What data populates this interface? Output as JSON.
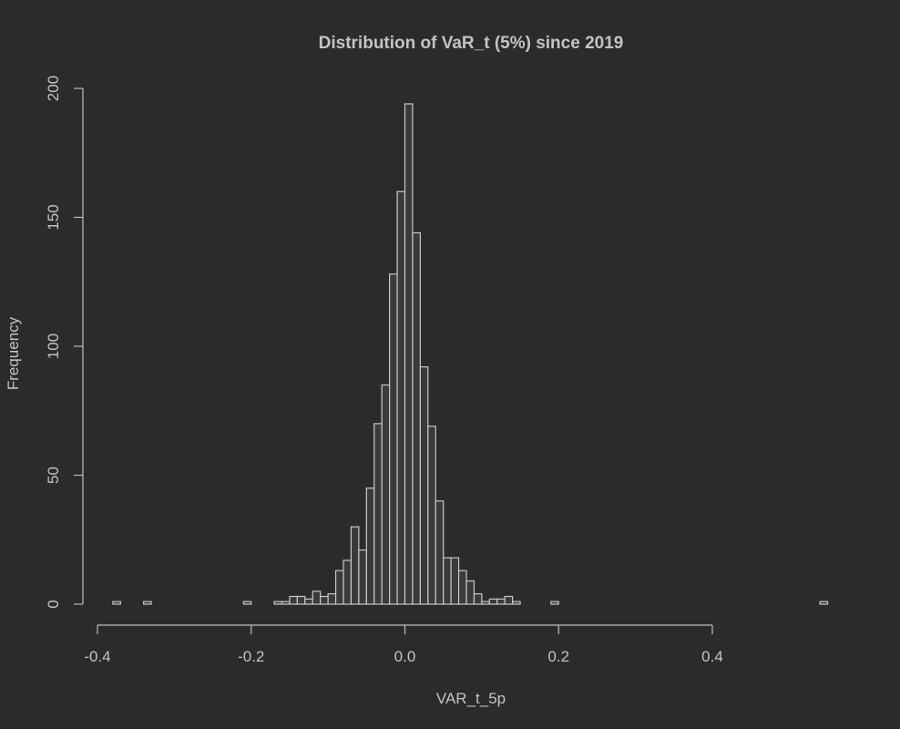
{
  "colors": {
    "background": "#2b2b2b",
    "bar_fill": "#3a3a3a",
    "bar_stroke": "#c8c8c8",
    "axis": "#bdbdbd",
    "text": "#c4c4c4"
  },
  "chart_data": {
    "type": "bar",
    "subtype": "histogram",
    "title": "Distribution of VaR_t (5%) since 2019",
    "xlabel": "VAR_t_5p",
    "ylabel": "Frequency",
    "xlim": [
      -0.4,
      0.55
    ],
    "ylim": [
      0,
      200
    ],
    "x_ticks": [
      -0.4,
      -0.2,
      0.0,
      0.2,
      0.4
    ],
    "x_tick_labels": [
      "-0.4",
      "-0.2",
      "0.0",
      "0.2",
      "0.4"
    ],
    "y_ticks": [
      0,
      50,
      100,
      150,
      200
    ],
    "y_tick_labels": [
      "0",
      "50",
      "100",
      "150",
      "200"
    ],
    "grid": false,
    "legend": "none",
    "bin_width": 0.01,
    "bins": [
      {
        "x0": -0.38,
        "x1": -0.37,
        "count": 1
      },
      {
        "x0": -0.34,
        "x1": -0.33,
        "count": 1
      },
      {
        "x0": -0.21,
        "x1": -0.2,
        "count": 1
      },
      {
        "x0": -0.17,
        "x1": -0.16,
        "count": 1
      },
      {
        "x0": -0.16,
        "x1": -0.15,
        "count": 1
      },
      {
        "x0": -0.15,
        "x1": -0.14,
        "count": 3
      },
      {
        "x0": -0.14,
        "x1": -0.13,
        "count": 3
      },
      {
        "x0": -0.13,
        "x1": -0.12,
        "count": 2
      },
      {
        "x0": -0.12,
        "x1": -0.11,
        "count": 5
      },
      {
        "x0": -0.11,
        "x1": -0.1,
        "count": 3
      },
      {
        "x0": -0.1,
        "x1": -0.09,
        "count": 4
      },
      {
        "x0": -0.09,
        "x1": -0.08,
        "count": 13
      },
      {
        "x0": -0.08,
        "x1": -0.07,
        "count": 17
      },
      {
        "x0": -0.07,
        "x1": -0.06,
        "count": 30
      },
      {
        "x0": -0.06,
        "x1": -0.05,
        "count": 21
      },
      {
        "x0": -0.05,
        "x1": -0.04,
        "count": 45
      },
      {
        "x0": -0.04,
        "x1": -0.03,
        "count": 70
      },
      {
        "x0": -0.03,
        "x1": -0.02,
        "count": 85
      },
      {
        "x0": -0.02,
        "x1": -0.01,
        "count": 128
      },
      {
        "x0": -0.01,
        "x1": 0.0,
        "count": 160
      },
      {
        "x0": 0.0,
        "x1": 0.01,
        "count": 194
      },
      {
        "x0": 0.01,
        "x1": 0.02,
        "count": 144
      },
      {
        "x0": 0.02,
        "x1": 0.03,
        "count": 92
      },
      {
        "x0": 0.03,
        "x1": 0.04,
        "count": 69
      },
      {
        "x0": 0.04,
        "x1": 0.05,
        "count": 40
      },
      {
        "x0": 0.05,
        "x1": 0.06,
        "count": 18
      },
      {
        "x0": 0.06,
        "x1": 0.07,
        "count": 18
      },
      {
        "x0": 0.07,
        "x1": 0.08,
        "count": 13
      },
      {
        "x0": 0.08,
        "x1": 0.09,
        "count": 9
      },
      {
        "x0": 0.09,
        "x1": 0.1,
        "count": 4
      },
      {
        "x0": 0.1,
        "x1": 0.11,
        "count": 1
      },
      {
        "x0": 0.11,
        "x1": 0.12,
        "count": 2
      },
      {
        "x0": 0.12,
        "x1": 0.13,
        "count": 2
      },
      {
        "x0": 0.13,
        "x1": 0.14,
        "count": 3
      },
      {
        "x0": 0.14,
        "x1": 0.15,
        "count": 1
      },
      {
        "x0": 0.19,
        "x1": 0.2,
        "count": 1
      },
      {
        "x0": 0.54,
        "x1": 0.55,
        "count": 1
      }
    ]
  }
}
